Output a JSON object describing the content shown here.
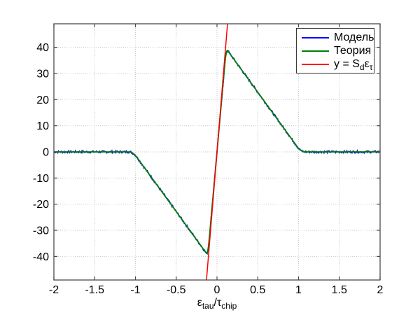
{
  "figure": {
    "background": "#ffffff",
    "axes_color": "#4a4a4a",
    "grid_color": "#c9c9c9"
  },
  "chart_data": {
    "type": "line",
    "title": "",
    "xlabel_parts": {
      "sym1": "ε",
      "sub1": "tau",
      "sym2": "/τ",
      "sub2": "chip"
    },
    "xlim": [
      -2,
      2
    ],
    "ylim": [
      -49,
      49
    ],
    "xticks": [
      -2,
      -1.5,
      -1,
      -0.5,
      0,
      0.5,
      1,
      1.5,
      2
    ],
    "xtick_labels": [
      "-2",
      "-1.5",
      "-1",
      "-0.5",
      "0",
      "0.5",
      "1",
      "1.5",
      "2"
    ],
    "yticks": [
      -40,
      -30,
      -20,
      -10,
      0,
      10,
      20,
      30,
      40
    ],
    "ytick_labels": [
      "-40",
      "-30",
      "-20",
      "-10",
      "0",
      "10",
      "20",
      "30",
      "40"
    ],
    "grid": "on",
    "legend": {
      "position": "top-right",
      "entries": [
        {
          "label": "Модель",
          "color": "#0000ff"
        },
        {
          "label": "Теория",
          "color": "#007f00"
        },
        {
          "label_parts": {
            "pre": "y = S",
            "sub1": "d",
            "mid": "ε",
            "sub2": "τ"
          },
          "color": "#ff0000"
        }
      ]
    },
    "series": [
      {
        "name": "Модель",
        "type": "noisy_model",
        "color": "#0000ff",
        "line_width": 1.5,
        "noise_amplitude": 0.45,
        "sample_step": 0.008
      },
      {
        "name": "Теория",
        "type": "piecewise",
        "color": "#007f00",
        "line_width": 1.8,
        "breakpoints_x": [
          -2,
          -1.03,
          -0.113,
          0.113,
          1.03,
          2
        ],
        "breakpoints_y": [
          0,
          0,
          -39.5,
          39.5,
          0,
          0
        ],
        "knee_radii": [
          0.05,
          0.018,
          0.018,
          0.05
        ],
        "peak_value": 39.5,
        "peak_offset": 0.113
      },
      {
        "name": "y = Sd·ετ",
        "type": "straight_line",
        "color": "#ff0000",
        "line_width": 1.5,
        "slope": 380,
        "intercept": 0
      }
    ]
  }
}
